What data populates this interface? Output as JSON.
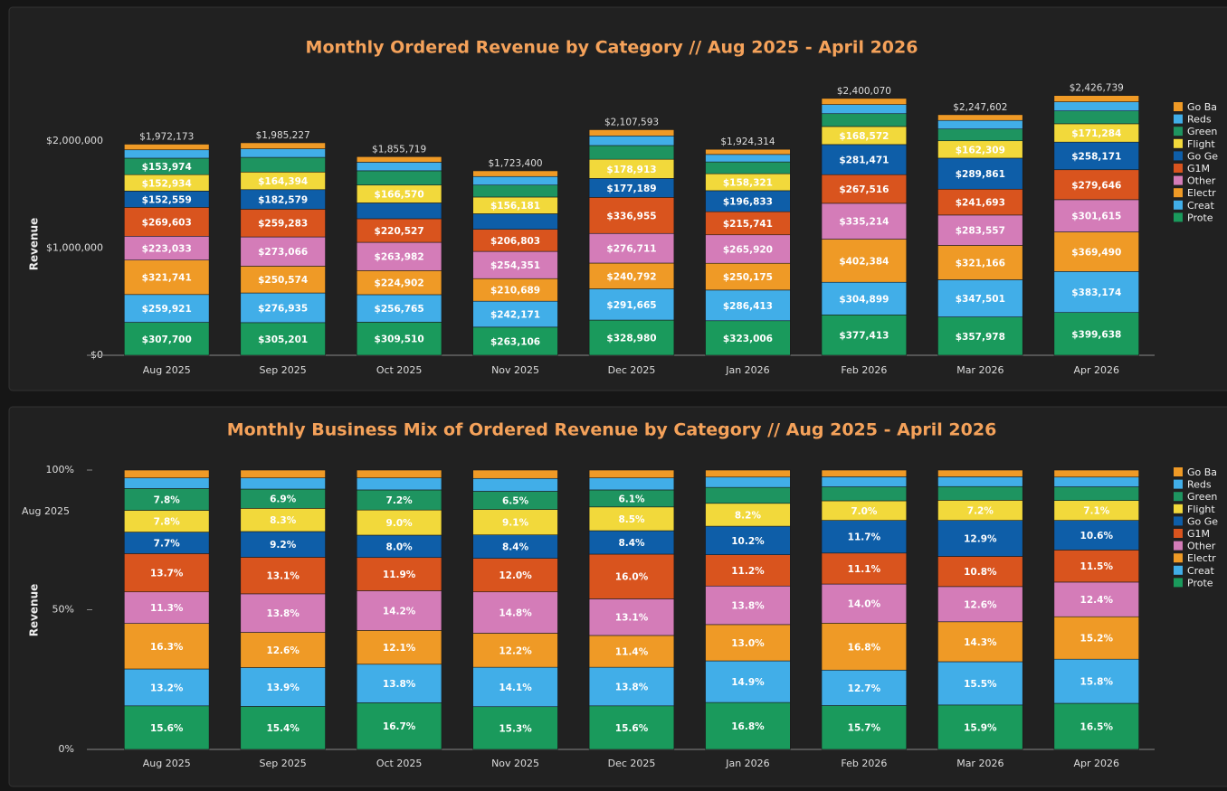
{
  "chart_data": [
    {
      "type": "bar",
      "stacked": true,
      "title": "Monthly Ordered Revenue by Category // Aug 2025 - April 2026",
      "y_label": "Revenue",
      "categories": [
        "Aug 2025",
        "Sep 2025",
        "Oct 2025",
        "Nov 2025",
        "Dec 2025",
        "Jan 2026",
        "Feb 2026",
        "Mar 2026",
        "Apr 2026"
      ],
      "ylim": [
        0,
        2500000
      ],
      "yticks": [
        {
          "value": 0,
          "label": "$0"
        },
        {
          "value": 1000000,
          "label": "$1,000,000"
        },
        {
          "value": 2000000,
          "label": "$2,000,000"
        }
      ],
      "grid": false,
      "totals": [
        1972173,
        1985227,
        1855719,
        1723400,
        2107593,
        1924314,
        2400070,
        2247602,
        2426739
      ],
      "total_labels": [
        "$1,972,173",
        "$1,985,227",
        "$1,855,719",
        "$1,723,400",
        "$2,107,593",
        "$1,924,314",
        "$2,400,070",
        "$2,247,602",
        "$2,426,739"
      ],
      "series": [
        {
          "name": "Prote",
          "color": "#1a9a5c",
          "values": [
            307700,
            305201,
            309510,
            263106,
            328980,
            323006,
            377413,
            357978,
            399638
          ],
          "value_labels": [
            "$307,700",
            "$305,201",
            "$309,510",
            "$263,106",
            "$328,980",
            "$323,006",
            "$377,413",
            "$357,978",
            "$399,638"
          ]
        },
        {
          "name": "Creat",
          "color": "#41aee8",
          "values": [
            259921,
            276935,
            256765,
            242171,
            291665,
            286413,
            304899,
            347501,
            383174
          ],
          "value_labels": [
            "$259,921",
            "$276,935",
            "$256,765",
            "$242,171",
            "$291,665",
            "$286,413",
            "$304,899",
            "$347,501",
            "$383,174"
          ]
        },
        {
          "name": "Electr",
          "color": "#ef9a26",
          "values": [
            321741,
            250574,
            224902,
            210689,
            240792,
            250175,
            402384,
            321166,
            369490
          ],
          "value_labels": [
            "$321,741",
            "$250,574",
            "$224,902",
            "$210,689",
            "$240,792",
            "$250,175",
            "$402,384",
            "$321,166",
            "$369,490"
          ]
        },
        {
          "name": "Other",
          "color": "#d47cb8",
          "values": [
            223033,
            273066,
            263982,
            254351,
            276711,
            265920,
            335214,
            283557,
            301615
          ],
          "value_labels": [
            "$223,033",
            "$273,066",
            "$263,982",
            "$254,351",
            "$276,711",
            "$265,920",
            "$335,214",
            "$283,557",
            "$301,615"
          ]
        },
        {
          "name": "G1M",
          "color": "#d9541e",
          "values": [
            269603,
            259283,
            220527,
            206803,
            336955,
            215741,
            267516,
            241693,
            279646
          ],
          "value_labels": [
            "$269,603",
            "$259,283",
            "$220,527",
            "$206,803",
            "$336,955",
            "$215,741",
            "$267,516",
            "$241,693",
            "$279,646"
          ]
        },
        {
          "name": "Go Ge",
          "color": "#0e5ea8",
          "values": [
            152559,
            182579,
            148000,
            145000,
            177189,
            196833,
            281471,
            289861,
            258171
          ],
          "value_labels": [
            "$152,559",
            "$182,579",
            null,
            null,
            "$177,189",
            "$196,833",
            "$281,471",
            "$289,861",
            "$258,171"
          ]
        },
        {
          "name": "Flight",
          "color": "#f2d93b",
          "values": [
            152934,
            164394,
            166570,
            156181,
            178913,
            158321,
            168572,
            162309,
            171284
          ],
          "value_labels": [
            "$152,934",
            "$164,394",
            "$166,570",
            "$156,181",
            "$178,913",
            "$158,321",
            "$168,572",
            "$162,309",
            "$171,284"
          ]
        },
        {
          "name": "Green",
          "color": "#1e9460",
          "values": [
            153974,
            137000,
            133600,
            112000,
            128500,
            110000,
            120000,
            110000,
            120000
          ],
          "value_labels": [
            "$153,974",
            null,
            null,
            null,
            null,
            null,
            null,
            null,
            null
          ]
        },
        {
          "name": "Reds",
          "color": "#41aee8",
          "values": [
            78000,
            80000,
            80000,
            80000,
            90000,
            70000,
            85000,
            80000,
            85000
          ],
          "value_labels": [
            null,
            null,
            null,
            null,
            null,
            null,
            null,
            null,
            null
          ]
        },
        {
          "name": "Go Ba",
          "color": "#ef9a26",
          "values": [
            52708,
            56195,
            51863,
            53099,
            57888,
            47905,
            57601,
            53537,
            58721
          ],
          "value_labels": [
            null,
            null,
            null,
            null,
            null,
            null,
            null,
            null,
            null
          ]
        }
      ]
    },
    {
      "type": "bar",
      "stacked": true,
      "title": "Monthly Business Mix of Ordered Revenue by Category // Aug 2025 - April 2026",
      "y_label": "Revenue",
      "annotation": "Aug 2025",
      "categories": [
        "Aug 2025",
        "Sep 2025",
        "Oct 2025",
        "Nov 2025",
        "Dec 2025",
        "Jan 2026",
        "Feb 2026",
        "Mar 2026",
        "Apr 2026"
      ],
      "ylim": [
        0,
        100
      ],
      "yticks": [
        {
          "value": 0,
          "label": "0%"
        },
        {
          "value": 50,
          "label": "50%"
        },
        {
          "value": 100,
          "label": "100%"
        }
      ],
      "grid": false,
      "series": [
        {
          "name": "Prote",
          "color": "#1a9a5c",
          "values": [
            15.6,
            15.4,
            16.7,
            15.3,
            15.6,
            16.8,
            15.7,
            15.9,
            16.5
          ],
          "value_labels": [
            "15.6%",
            "15.4%",
            "16.7%",
            "15.3%",
            "15.6%",
            "16.8%",
            "15.7%",
            "15.9%",
            "16.5%"
          ]
        },
        {
          "name": "Creat",
          "color": "#41aee8",
          "values": [
            13.2,
            13.9,
            13.8,
            14.1,
            13.8,
            14.9,
            12.7,
            15.5,
            15.8
          ],
          "value_labels": [
            "13.2%",
            "13.9%",
            "13.8%",
            "14.1%",
            "13.8%",
            "14.9%",
            "12.7%",
            "15.5%",
            "15.8%"
          ]
        },
        {
          "name": "Electr",
          "color": "#ef9a26",
          "values": [
            16.3,
            12.6,
            12.1,
            12.2,
            11.4,
            13.0,
            16.8,
            14.3,
            15.2
          ],
          "value_labels": [
            "16.3%",
            "12.6%",
            "12.1%",
            "12.2%",
            "11.4%",
            "13.0%",
            "16.8%",
            "14.3%",
            "15.2%"
          ]
        },
        {
          "name": "Other",
          "color": "#d47cb8",
          "values": [
            11.3,
            13.8,
            14.2,
            14.8,
            13.1,
            13.8,
            14.0,
            12.6,
            12.4
          ],
          "value_labels": [
            "11.3%",
            "13.8%",
            "14.2%",
            "14.8%",
            "13.1%",
            "13.8%",
            "14.0%",
            "12.6%",
            "12.4%"
          ]
        },
        {
          "name": "G1M",
          "color": "#d9541e",
          "values": [
            13.7,
            13.1,
            11.9,
            12.0,
            16.0,
            11.2,
            11.1,
            10.8,
            11.5
          ],
          "value_labels": [
            "13.7%",
            "13.1%",
            "11.9%",
            "12.0%",
            "16.0%",
            "11.2%",
            "11.1%",
            "10.8%",
            "11.5%"
          ]
        },
        {
          "name": "Go Ge",
          "color": "#0e5ea8",
          "values": [
            7.7,
            9.2,
            8.0,
            8.4,
            8.4,
            10.2,
            11.7,
            12.9,
            10.6
          ],
          "value_labels": [
            "7.7%",
            "9.2%",
            "8.0%",
            "8.4%",
            "8.4%",
            "10.2%",
            "11.7%",
            "12.9%",
            "10.6%"
          ]
        },
        {
          "name": "Flight",
          "color": "#f2d93b",
          "values": [
            7.8,
            8.3,
            9.0,
            9.1,
            8.5,
            8.2,
            7.0,
            7.2,
            7.1
          ],
          "value_labels": [
            "7.8%",
            "8.3%",
            "9.0%",
            "9.1%",
            "8.5%",
            "8.2%",
            "7.0%",
            "7.2%",
            "7.1%"
          ]
        },
        {
          "name": "Green",
          "color": "#1e9460",
          "values": [
            7.8,
            6.9,
            7.2,
            6.5,
            6.1,
            5.7,
            5.0,
            4.9,
            4.9
          ],
          "value_labels": [
            "7.8%",
            "6.9%",
            "7.2%",
            "6.5%",
            "6.1%",
            null,
            null,
            null,
            null
          ]
        },
        {
          "name": "Reds",
          "color": "#41aee8",
          "values": [
            3.8,
            4.0,
            4.3,
            4.6,
            4.3,
            3.7,
            3.6,
            3.5,
            3.5
          ],
          "value_labels": [
            null,
            null,
            null,
            null,
            null,
            null,
            null,
            null,
            null
          ]
        },
        {
          "name": "Go Ba",
          "color": "#ef9a26",
          "values": [
            2.8,
            2.8,
            2.8,
            3.0,
            2.8,
            2.5,
            2.4,
            2.4,
            2.5
          ],
          "value_labels": [
            null,
            null,
            null,
            null,
            null,
            null,
            null,
            null,
            null
          ]
        }
      ]
    }
  ]
}
